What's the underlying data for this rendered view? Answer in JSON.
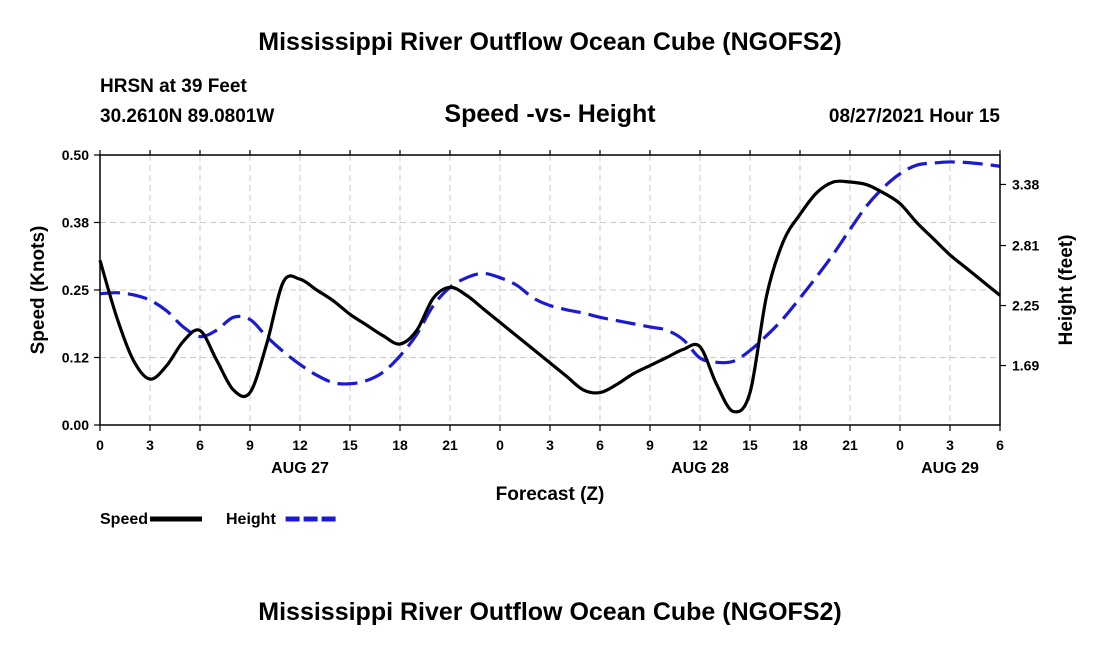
{
  "header": {
    "title": "Mississippi River Outflow Ocean Cube (NGOFS2)",
    "station": "HRSN at 39 Feet",
    "coords": "30.2610N  89.0801W",
    "subtitle": "Speed -vs- Height",
    "datetime": "08/27/2021 Hour 15"
  },
  "footer": {
    "title": "Mississippi River Outflow Ocean Cube (NGOFS2)"
  },
  "chart_data": {
    "type": "line",
    "xlabel": "Forecast (Z)",
    "ylabel_left": "Speed (Knots)",
    "ylabel_right": "Height (feet)",
    "x_hours_range": [
      0,
      54
    ],
    "x_tick_hours": [
      0,
      3,
      6,
      9,
      12,
      15,
      18,
      21,
      24,
      27,
      30,
      33,
      36,
      39,
      42,
      45,
      48,
      51,
      54
    ],
    "x_tick_labels": [
      "0",
      "3",
      "6",
      "9",
      "12",
      "15",
      "18",
      "21",
      "0",
      "3",
      "6",
      "9",
      "12",
      "15",
      "18",
      "21",
      "0",
      "3",
      "6"
    ],
    "date_labels": [
      {
        "hour": 12,
        "text": "AUG 27"
      },
      {
        "hour": 36,
        "text": "AUG 28"
      },
      {
        "hour": 51,
        "text": "AUG 29"
      }
    ],
    "y_left": {
      "range": [
        0,
        0.5
      ],
      "ticks": [
        0.0,
        0.125,
        0.25,
        0.375,
        0.5
      ],
      "tick_labels": [
        "0.00",
        "0.12",
        "0.25",
        "0.38",
        "0.50"
      ]
    },
    "y_right": {
      "range": [
        1.135,
        3.655
      ],
      "ticks": [
        1.69,
        2.25,
        2.81,
        3.38
      ],
      "tick_labels": [
        "1.69",
        "2.25",
        "2.81",
        "3.38"
      ]
    },
    "grid": true,
    "series": [
      {
        "name": "Speed",
        "axis": "left",
        "color": "#000000",
        "dash": "solid",
        "x": [
          0,
          1,
          2,
          3,
          4,
          5,
          6,
          7,
          8,
          9,
          10,
          11,
          12,
          13,
          14,
          15,
          16,
          17,
          18,
          19,
          20,
          21,
          22,
          23,
          24,
          25,
          26,
          27,
          28,
          29,
          30,
          31,
          32,
          33,
          34,
          35,
          36,
          37,
          38,
          39,
          40,
          41,
          42,
          43,
          44,
          45,
          46,
          47,
          48,
          49,
          50,
          51,
          52,
          53,
          54
        ],
        "values": [
          0.305,
          0.2,
          0.12,
          0.085,
          0.11,
          0.155,
          0.175,
          0.12,
          0.065,
          0.06,
          0.15,
          0.265,
          0.27,
          0.25,
          0.23,
          0.205,
          0.185,
          0.165,
          0.15,
          0.175,
          0.235,
          0.255,
          0.24,
          0.215,
          0.19,
          0.165,
          0.14,
          0.115,
          0.09,
          0.065,
          0.06,
          0.075,
          0.095,
          0.11,
          0.125,
          0.14,
          0.145,
          0.075,
          0.025,
          0.06,
          0.24,
          0.34,
          0.39,
          0.43,
          0.45,
          0.45,
          0.445,
          0.43,
          0.41,
          0.375,
          0.345,
          0.315,
          0.29,
          0.265,
          0.24
        ]
      },
      {
        "name": "Height",
        "axis": "right",
        "color": "#1a1ad6",
        "dash": "dashed",
        "x": [
          0,
          1,
          2,
          3,
          4,
          5,
          6,
          7,
          8,
          9,
          10,
          11,
          12,
          13,
          14,
          15,
          16,
          17,
          18,
          19,
          20,
          21,
          22,
          23,
          24,
          25,
          26,
          27,
          28,
          29,
          30,
          31,
          32,
          33,
          34,
          35,
          36,
          37,
          38,
          39,
          40,
          41,
          42,
          43,
          44,
          45,
          46,
          47,
          48,
          49,
          50,
          51,
          52,
          53,
          54
        ],
        "values": [
          2.36,
          2.37,
          2.35,
          2.3,
          2.2,
          2.05,
          1.96,
          2.02,
          2.14,
          2.12,
          1.96,
          1.82,
          1.7,
          1.6,
          1.53,
          1.52,
          1.55,
          1.63,
          1.78,
          1.98,
          2.25,
          2.42,
          2.51,
          2.55,
          2.51,
          2.44,
          2.32,
          2.25,
          2.21,
          2.18,
          2.14,
          2.11,
          2.08,
          2.05,
          2.02,
          1.93,
          1.76,
          1.72,
          1.73,
          1.83,
          1.97,
          2.13,
          2.32,
          2.52,
          2.73,
          2.96,
          3.18,
          3.35,
          3.48,
          3.56,
          3.58,
          3.59,
          3.585,
          3.57,
          3.55
        ]
      }
    ],
    "legend": [
      {
        "label": "Speed",
        "color": "#000000",
        "dash": "solid"
      },
      {
        "label": "Height",
        "color": "#1a1ad6",
        "dash": "dashed"
      }
    ]
  }
}
